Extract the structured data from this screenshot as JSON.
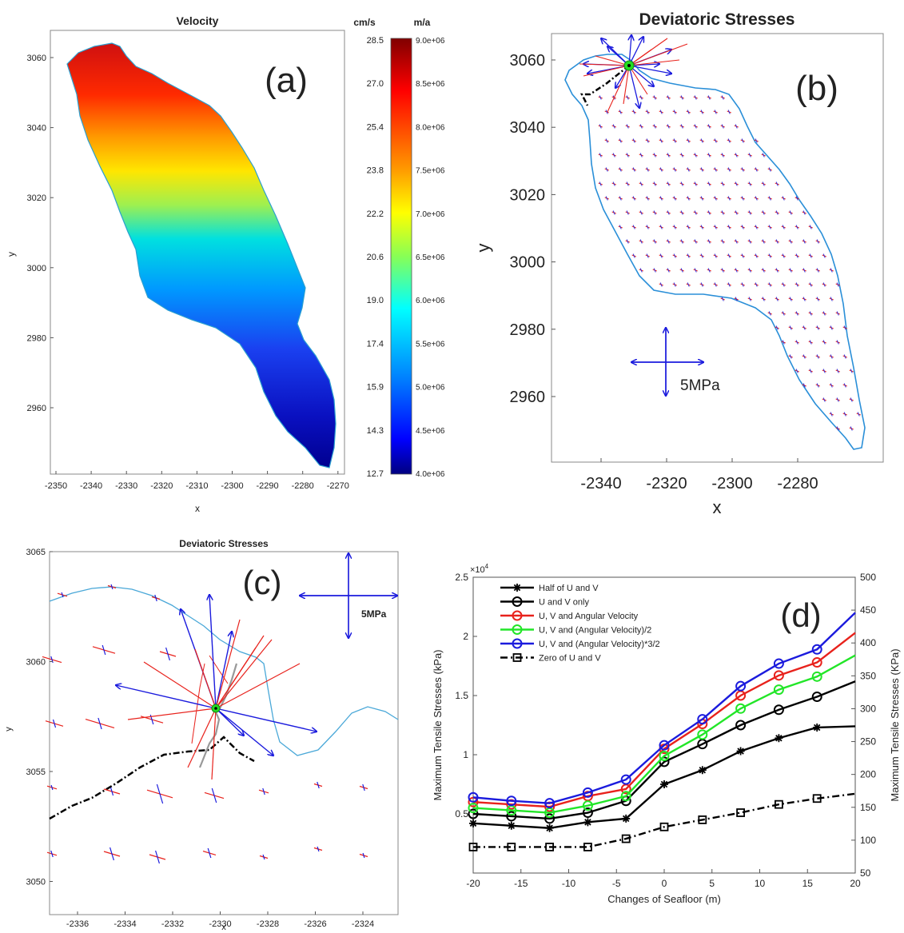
{
  "panel_a": {
    "title": "Velocity",
    "label": "(a)",
    "xlabel": "x",
    "ylabel": "y",
    "x_ticks": [
      "-2350",
      "-2340",
      "-2330",
      "-2320",
      "-2310",
      "-2300",
      "-2290",
      "-2280",
      "-2270"
    ],
    "y_ticks": [
      "3060",
      "3040",
      "3020",
      "3000",
      "2980",
      "2960"
    ],
    "colorbar": {
      "unit_left": "cm/s",
      "unit_right": "m/a",
      "left_ticks": [
        "28.5",
        "27.0",
        "25.4",
        "23.8",
        "22.2",
        "20.6",
        "19.0",
        "17.4",
        "15.9",
        "14.3",
        "12.7"
      ],
      "right_ticks": [
        "9.0e+06",
        "8.5e+06",
        "8.0e+06",
        "7.5e+06",
        "7.0e+06",
        "6.5e+06",
        "6.0e+06",
        "5.5e+06",
        "5.0e+06",
        "4.5e+06",
        "4.0e+06"
      ],
      "colormap": "jet"
    }
  },
  "panel_b": {
    "title": "Deviatoric Stresses",
    "label": "(b)",
    "xlabel": "x",
    "ylabel": "y",
    "x_ticks": [
      "-2340",
      "-2320",
      "-2300",
      "-2280"
    ],
    "y_ticks": [
      "3060",
      "3040",
      "3020",
      "3000",
      "2980",
      "2960"
    ],
    "scale_label": "5MPa"
  },
  "panel_c": {
    "title": "Deviatoric Stresses",
    "label": "(c)",
    "xlabel": "x",
    "ylabel": "y",
    "x_ticks": [
      "-2336",
      "-2334",
      "-2332",
      "-2330",
      "-2328",
      "-2326",
      "-2324"
    ],
    "y_ticks": [
      "3065",
      "3060",
      "3055",
      "3050"
    ],
    "scale_label": "5MPa"
  },
  "chart_data": {
    "type": "line",
    "label": "(d)",
    "xlabel": "Changes of Seafloor (m)",
    "ylabel": "Maximum Tensile Stresses (kPa)",
    "ylabel_right": "Maximum Tensile Stresses (KPa)",
    "y_exponent": "×10",
    "y_exponent_power": "4",
    "x": [
      -20,
      -16,
      -12,
      -8,
      -4,
      0,
      4,
      8,
      12,
      16,
      20
    ],
    "x_ticks": [
      "-20",
      "-15",
      "-10",
      "-5",
      "0",
      "5",
      "10",
      "15",
      "20"
    ],
    "y_ticks": [
      "0.5",
      "1",
      "1.5",
      "2",
      "2.5"
    ],
    "y_right_ticks": [
      "50",
      "100",
      "150",
      "200",
      "250",
      "300",
      "350",
      "400",
      "450",
      "500"
    ],
    "xlim": [
      -20,
      20
    ],
    "ylim": [
      0,
      25000
    ],
    "ylim_right": [
      50,
      500
    ],
    "series": [
      {
        "name": "Half of U and V",
        "color": "#000000",
        "marker": "star",
        "dash": "solid",
        "values": [
          4200,
          4000,
          3800,
          4300,
          4600,
          7500,
          8700,
          10300,
          11400,
          12300,
          12400
        ]
      },
      {
        "name": "U and V only",
        "color": "#000000",
        "marker": "circle",
        "dash": "solid",
        "values": [
          5000,
          4800,
          4600,
          5100,
          6100,
          9400,
          10900,
          12500,
          13800,
          14900,
          16200
        ]
      },
      {
        "name": "U, V and Angular Velocity",
        "color": "#e8221c",
        "marker": "circle",
        "dash": "solid",
        "values": [
          6000,
          5800,
          5600,
          6500,
          7100,
          10500,
          12600,
          15000,
          16700,
          17800,
          20300
        ]
      },
      {
        "name": "U, V and (Angular Velocity)/2",
        "color": "#22e628",
        "marker": "circle",
        "dash": "solid",
        "values": [
          5500,
          5300,
          5100,
          5700,
          6500,
          9900,
          11700,
          13900,
          15500,
          16600,
          18400
        ]
      },
      {
        "name": "U, V and (Angular Velocity)*3/2",
        "color": "#1b1bdd",
        "marker": "circle",
        "dash": "solid",
        "values": [
          6400,
          6100,
          5900,
          6800,
          7900,
          10800,
          13000,
          15800,
          17700,
          18900,
          22000
        ]
      },
      {
        "name": "Zero of U and V",
        "color": "#000000",
        "marker": "square",
        "dash": "dashdot",
        "values": [
          2200,
          2200,
          2200,
          2200,
          2900,
          3900,
          4500,
          5100,
          5800,
          6300,
          6700
        ]
      }
    ]
  }
}
